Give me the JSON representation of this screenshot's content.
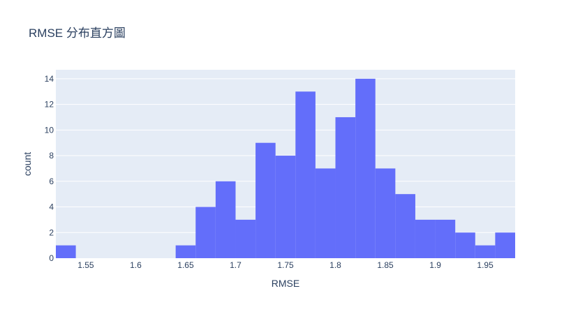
{
  "chart_data": {
    "type": "bar",
    "title": "RMSE 分布直方圖",
    "xlabel": "RMSE",
    "ylabel": "count",
    "xlim": [
      1.52,
      1.98
    ],
    "ylim": [
      0,
      14.7
    ],
    "bin_width": 0.02,
    "bins": [
      {
        "x0": 1.52,
        "x1": 1.54,
        "count": 1
      },
      {
        "x0": 1.54,
        "x1": 1.56,
        "count": 0
      },
      {
        "x0": 1.56,
        "x1": 1.58,
        "count": 0
      },
      {
        "x0": 1.58,
        "x1": 1.6,
        "count": 0
      },
      {
        "x0": 1.6,
        "x1": 1.62,
        "count": 0
      },
      {
        "x0": 1.62,
        "x1": 1.64,
        "count": 0
      },
      {
        "x0": 1.64,
        "x1": 1.66,
        "count": 1
      },
      {
        "x0": 1.66,
        "x1": 1.68,
        "count": 4
      },
      {
        "x0": 1.68,
        "x1": 1.7,
        "count": 6
      },
      {
        "x0": 1.7,
        "x1": 1.72,
        "count": 3
      },
      {
        "x0": 1.72,
        "x1": 1.74,
        "count": 9
      },
      {
        "x0": 1.74,
        "x1": 1.76,
        "count": 8
      },
      {
        "x0": 1.76,
        "x1": 1.78,
        "count": 13
      },
      {
        "x0": 1.78,
        "x1": 1.8,
        "count": 7
      },
      {
        "x0": 1.8,
        "x1": 1.82,
        "count": 11
      },
      {
        "x0": 1.82,
        "x1": 1.84,
        "count": 14
      },
      {
        "x0": 1.84,
        "x1": 1.86,
        "count": 7
      },
      {
        "x0": 1.86,
        "x1": 1.88,
        "count": 5
      },
      {
        "x0": 1.88,
        "x1": 1.9,
        "count": 3
      },
      {
        "x0": 1.9,
        "x1": 1.92,
        "count": 3
      },
      {
        "x0": 1.92,
        "x1": 1.94,
        "count": 2
      },
      {
        "x0": 1.94,
        "x1": 1.96,
        "count": 1
      },
      {
        "x0": 1.96,
        "x1": 1.98,
        "count": 2
      }
    ],
    "x_ticks": [
      {
        "value": 1.55,
        "label": "1.55"
      },
      {
        "value": 1.6,
        "label": "1.6"
      },
      {
        "value": 1.65,
        "label": "1.65"
      },
      {
        "value": 1.7,
        "label": "1.7"
      },
      {
        "value": 1.75,
        "label": "1.75"
      },
      {
        "value": 1.8,
        "label": "1.8"
      },
      {
        "value": 1.85,
        "label": "1.85"
      },
      {
        "value": 1.9,
        "label": "1.9"
      },
      {
        "value": 1.95,
        "label": "1.95"
      }
    ],
    "y_ticks": [
      {
        "value": 0,
        "label": "0"
      },
      {
        "value": 2,
        "label": "2"
      },
      {
        "value": 4,
        "label": "4"
      },
      {
        "value": 6,
        "label": "6"
      },
      {
        "value": 8,
        "label": "8"
      },
      {
        "value": 10,
        "label": "10"
      },
      {
        "value": 12,
        "label": "12"
      },
      {
        "value": 14,
        "label": "14"
      }
    ],
    "grid": true,
    "legend": "none",
    "colors": {
      "bar": "#636efa",
      "plot_background": "#e5ecf6",
      "gridline": "#ffffff",
      "text": "#2a3f5f"
    }
  }
}
